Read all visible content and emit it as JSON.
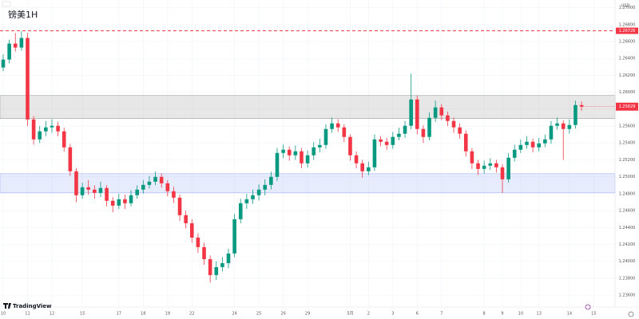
{
  "chart_data": {
    "type": "candlestick",
    "title": "镑美1H",
    "brand": "TradingView",
    "currency": "USD",
    "up_color": "#089981",
    "down_color": "#f23645",
    "grid": true,
    "ylim": [
      1.2346,
      1.2709
    ],
    "xlim": [
      -0.5,
      100
    ],
    "yticks": [
      {
        "value": 1.236,
        "label": "1.23600"
      },
      {
        "value": 1.238,
        "label": "1.23800"
      },
      {
        "value": 1.24,
        "label": "1.24000"
      },
      {
        "value": 1.242,
        "label": "1.24200"
      },
      {
        "value": 1.244,
        "label": "1.24400"
      },
      {
        "value": 1.246,
        "label": "1.24600"
      },
      {
        "value": 1.248,
        "label": "1.24800"
      },
      {
        "value": 1.25,
        "label": "1.25000"
      },
      {
        "value": 1.252,
        "label": "1.25200"
      },
      {
        "value": 1.254,
        "label": "1.25400"
      },
      {
        "value": 1.256,
        "label": "1.25600"
      },
      {
        "value": 1.258,
        "label": "1.25800"
      },
      {
        "value": 1.26,
        "label": "1.26000"
      },
      {
        "value": 1.262,
        "label": "1.26200"
      },
      {
        "value": 1.264,
        "label": "1.26400"
      },
      {
        "value": 1.266,
        "label": "1.26600"
      },
      {
        "value": 1.268,
        "label": "1.26800"
      },
      {
        "value": 1.27,
        "label": "1.27000"
      }
    ],
    "xticks": [
      {
        "value": 0,
        "label": "10"
      },
      {
        "value": 4,
        "label": "11"
      },
      {
        "value": 8,
        "label": "12"
      },
      {
        "value": 13,
        "label": "15"
      },
      {
        "value": 19,
        "label": "17"
      },
      {
        "value": 23,
        "label": "18"
      },
      {
        "value": 27,
        "label": "19"
      },
      {
        "value": 31,
        "label": "22"
      },
      {
        "value": 38,
        "label": "24"
      },
      {
        "value": 42,
        "label": "25"
      },
      {
        "value": 46,
        "label": "26"
      },
      {
        "value": 50,
        "label": "29"
      },
      {
        "value": 57,
        "label": "5月"
      },
      {
        "value": 60,
        "label": "2"
      },
      {
        "value": 64,
        "label": "3"
      },
      {
        "value": 68,
        "label": "6"
      },
      {
        "value": 72,
        "label": "7"
      },
      {
        "value": 79,
        "label": "8"
      },
      {
        "value": 82,
        "label": "9"
      },
      {
        "value": 85,
        "label": "10"
      },
      {
        "value": 88,
        "label": "13"
      },
      {
        "value": 93,
        "label": "14"
      },
      {
        "value": 97,
        "label": "15"
      }
    ],
    "hline": {
      "value": 1.26726,
      "label": "1.26726",
      "color": "#f23645"
    },
    "last_price_label": "1.25829",
    "zones": [
      {
        "from": 1.25688,
        "to": 1.25961,
        "color": "#9e9e9e"
      },
      {
        "from": 1.2481,
        "to": 1.25036,
        "color": "#9fb3f5"
      }
    ],
    "ohlc": [
      [
        1.26292,
        1.2645,
        1.2625,
        1.26386
      ],
      [
        1.26386,
        1.2662,
        1.2634,
        1.26575
      ],
      [
        1.26575,
        1.267,
        1.2648,
        1.26528
      ],
      [
        1.26528,
        1.2672,
        1.2649,
        1.26641
      ],
      [
        1.26641,
        1.267,
        1.256,
        1.25678
      ],
      [
        1.25678,
        1.2572,
        1.2538,
        1.25442
      ],
      [
        1.25442,
        1.256,
        1.254,
        1.25537
      ],
      [
        1.25537,
        1.2566,
        1.2548,
        1.25584
      ],
      [
        1.25584,
        1.2568,
        1.2552,
        1.25603
      ],
      [
        1.25603,
        1.2565,
        1.2548,
        1.25537
      ],
      [
        1.25537,
        1.2558,
        1.253,
        1.25348
      ],
      [
        1.25348,
        1.2539,
        1.2501,
        1.25065
      ],
      [
        1.25065,
        1.251,
        1.247,
        1.24782
      ],
      [
        1.24782,
        1.2493,
        1.2474,
        1.24876
      ],
      [
        1.24876,
        1.2496,
        1.2479,
        1.24848
      ],
      [
        1.24848,
        1.249,
        1.2474,
        1.2481
      ],
      [
        1.2481,
        1.2494,
        1.2476,
        1.24867
      ],
      [
        1.24867,
        1.249,
        1.2465,
        1.24716
      ],
      [
        1.24716,
        1.2476,
        1.2458,
        1.24659
      ],
      [
        1.24659,
        1.248,
        1.2462,
        1.24734
      ],
      [
        1.24734,
        1.2479,
        1.2462,
        1.24687
      ],
      [
        1.24687,
        1.2484,
        1.2465,
        1.24782
      ],
      [
        1.24782,
        1.249,
        1.2474,
        1.24848
      ],
      [
        1.24848,
        1.2496,
        1.248,
        1.24904
      ],
      [
        1.24904,
        1.2501,
        1.2486,
        1.24942
      ],
      [
        1.24942,
        1.2506,
        1.249,
        1.24999
      ],
      [
        1.24999,
        1.2504,
        1.2487,
        1.24923
      ],
      [
        1.24923,
        1.2496,
        1.2477,
        1.24829
      ],
      [
        1.24829,
        1.2488,
        1.2469,
        1.24753
      ],
      [
        1.24753,
        1.2479,
        1.2448,
        1.24546
      ],
      [
        1.24546,
        1.246,
        1.2439,
        1.24451
      ],
      [
        1.24451,
        1.245,
        1.2422,
        1.24281
      ],
      [
        1.24281,
        1.2433,
        1.241,
        1.24168
      ],
      [
        1.24168,
        1.2422,
        1.2396,
        1.24026
      ],
      [
        1.24026,
        1.2407,
        1.2375,
        1.23838
      ],
      [
        1.23838,
        1.24,
        1.2378,
        1.23932
      ],
      [
        1.23932,
        1.2405,
        1.2388,
        1.23979
      ],
      [
        1.23979,
        1.2415,
        1.2392,
        1.24093
      ],
      [
        1.24093,
        1.2456,
        1.2405,
        1.24498
      ],
      [
        1.24498,
        1.2474,
        1.2445,
        1.24687
      ],
      [
        1.24687,
        1.248,
        1.2462,
        1.24734
      ],
      [
        1.24734,
        1.2485,
        1.2468,
        1.24782
      ],
      [
        1.24782,
        1.2491,
        1.2472,
        1.24848
      ],
      [
        1.24848,
        1.2497,
        1.2478,
        1.24904
      ],
      [
        1.24904,
        1.2506,
        1.2485,
        1.24999
      ],
      [
        1.24999,
        1.2534,
        1.2495,
        1.25282
      ],
      [
        1.25282,
        1.2538,
        1.2522,
        1.2532
      ],
      [
        1.2532,
        1.2536,
        1.2519,
        1.25254
      ],
      [
        1.25254,
        1.2537,
        1.252,
        1.25301
      ],
      [
        1.25301,
        1.2534,
        1.251,
        1.25159
      ],
      [
        1.25159,
        1.2531,
        1.2511,
        1.25254
      ],
      [
        1.25254,
        1.2541,
        1.252,
        1.25348
      ],
      [
        1.25348,
        1.2545,
        1.2529,
        1.25376
      ],
      [
        1.25376,
        1.2562,
        1.2533,
        1.25565
      ],
      [
        1.25565,
        1.257,
        1.2552,
        1.25631
      ],
      [
        1.25631,
        1.2568,
        1.2553,
        1.25584
      ],
      [
        1.25584,
        1.2562,
        1.2541,
        1.25471
      ],
      [
        1.25471,
        1.255,
        1.2519,
        1.25254
      ],
      [
        1.25254,
        1.253,
        1.251,
        1.25159
      ],
      [
        1.25159,
        1.252,
        1.2499,
        1.25065
      ],
      [
        1.25065,
        1.2518,
        1.2502,
        1.25112
      ],
      [
        1.25112,
        1.255,
        1.2507,
        1.25442
      ],
      [
        1.25442,
        1.2548,
        1.2536,
        1.25414
      ],
      [
        1.25414,
        1.2546,
        1.2532,
        1.25376
      ],
      [
        1.25376,
        1.2553,
        1.2533,
        1.25471
      ],
      [
        1.25471,
        1.2558,
        1.2543,
        1.25509
      ],
      [
        1.25509,
        1.2566,
        1.2546,
        1.25603
      ],
      [
        1.25603,
        1.2622,
        1.2556,
        1.25914
      ],
      [
        1.25914,
        1.2596,
        1.255,
        1.25565
      ],
      [
        1.25565,
        1.2561,
        1.254,
        1.25471
      ],
      [
        1.25471,
        1.2576,
        1.2543,
        1.25697
      ],
      [
        1.25697,
        1.259,
        1.2565,
        1.2582
      ],
      [
        1.2582,
        1.2586,
        1.2567,
        1.25726
      ],
      [
        1.25726,
        1.2577,
        1.256,
        1.2566
      ],
      [
        1.2566,
        1.257,
        1.2552,
        1.25584
      ],
      [
        1.25584,
        1.2563,
        1.2545,
        1.25509
      ],
      [
        1.25509,
        1.2555,
        1.2524,
        1.25301
      ],
      [
        1.25301,
        1.2534,
        1.2509,
        1.25159
      ],
      [
        1.25159,
        1.252,
        1.2502,
        1.25093
      ],
      [
        1.25093,
        1.2519,
        1.2504,
        1.25131
      ],
      [
        1.25131,
        1.2522,
        1.2508,
        1.25159
      ],
      [
        1.25159,
        1.252,
        1.2505,
        1.25112
      ],
      [
        1.25112,
        1.2515,
        1.2481,
        1.2497
      ],
      [
        1.2497,
        1.2528,
        1.2493,
        1.25225
      ],
      [
        1.25225,
        1.2538,
        1.2518,
        1.2532
      ],
      [
        1.2532,
        1.2544,
        1.2528,
        1.25376
      ],
      [
        1.25376,
        1.2548,
        1.2533,
        1.25414
      ],
      [
        1.25414,
        1.2545,
        1.2529,
        1.25348
      ],
      [
        1.25348,
        1.2546,
        1.253,
        1.25395
      ],
      [
        1.25395,
        1.255,
        1.2535,
        1.25442
      ],
      [
        1.25442,
        1.2566,
        1.2539,
        1.25603
      ],
      [
        1.25603,
        1.257,
        1.2556,
        1.25631
      ],
      [
        1.25631,
        1.2567,
        1.252,
        1.25565
      ],
      [
        1.25565,
        1.2568,
        1.2551,
        1.25612
      ],
      [
        1.25612,
        1.259,
        1.2557,
        1.25848
      ],
      [
        1.25848,
        1.2589,
        1.2578,
        1.25829
      ]
    ]
  }
}
